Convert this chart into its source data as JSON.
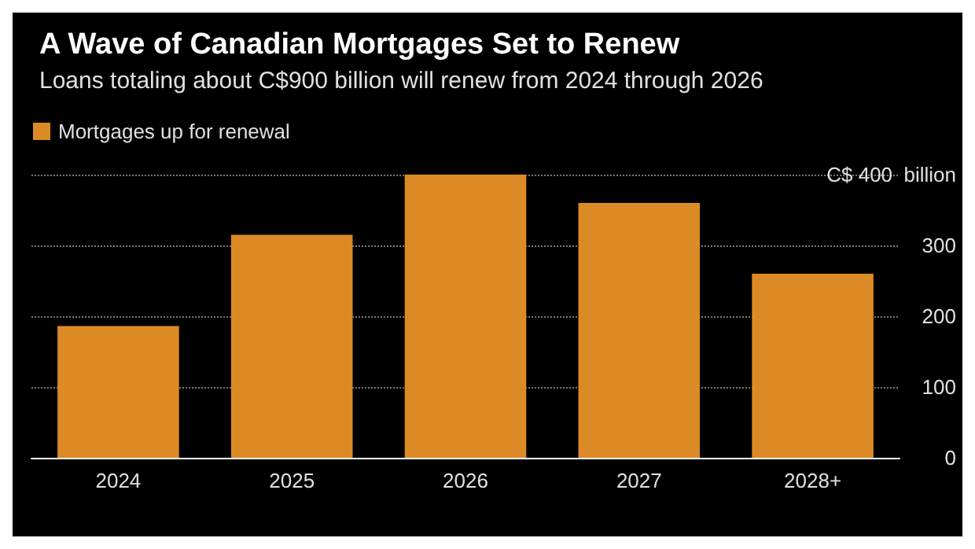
{
  "chart_data": {
    "type": "bar",
    "title": "A Wave of Canadian Mortgages Set to Renew",
    "subtitle": "Loans totaling about C$900 billion will renew from 2024 through 2026",
    "categories": [
      "2024",
      "2025",
      "2026",
      "2027",
      "2028+"
    ],
    "series": [
      {
        "name": "Mortgages up for renewal",
        "color": "#dc8a26",
        "values": [
          186,
          315,
          400,
          360,
          260
        ]
      }
    ],
    "ylim": [
      0,
      400
    ],
    "yticks": [
      0,
      100,
      200,
      300,
      {
        "value": 400,
        "label": "C$ 400  billion"
      }
    ],
    "grid": "y",
    "legend": "top left"
  }
}
